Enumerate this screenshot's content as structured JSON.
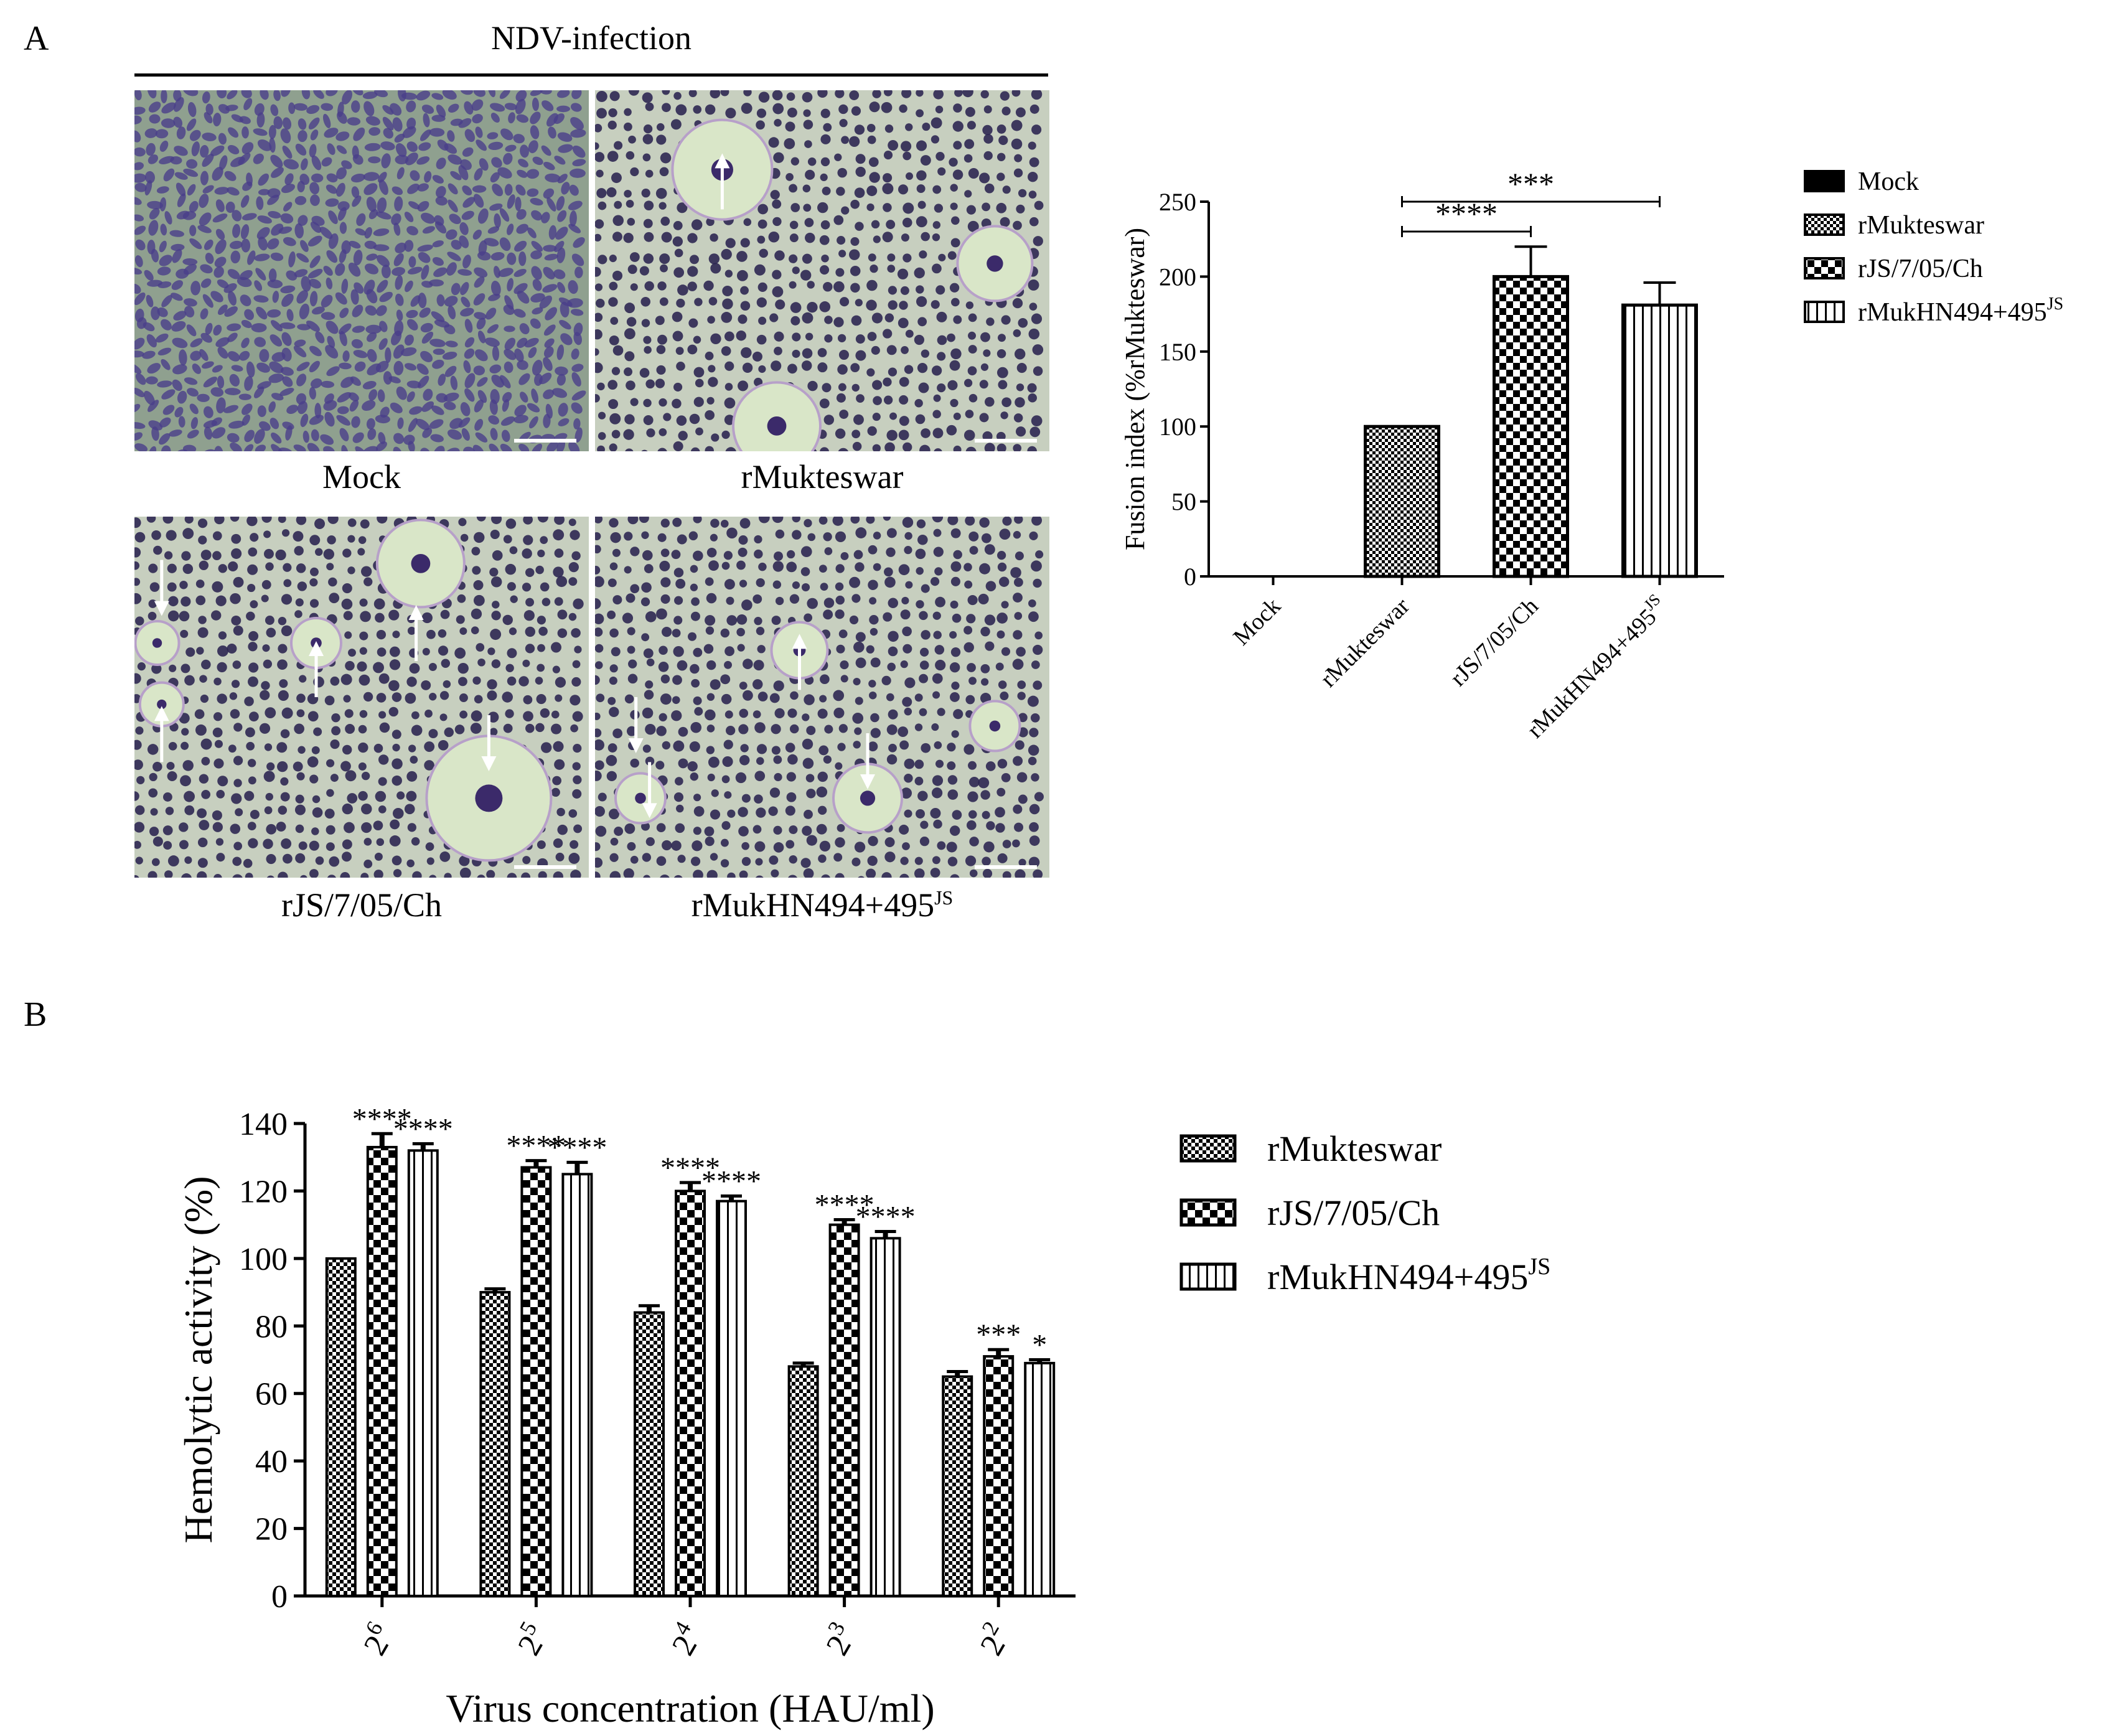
{
  "panel_a": {
    "letter": "A",
    "header": "NDV-infection",
    "images": [
      {
        "label": "Mock",
        "arrows": 0
      },
      {
        "label": "rMukteswar",
        "arrows": 1
      },
      {
        "label": "rJS/7/05/Ch",
        "arrows": 5
      },
      {
        "label": "rMukHN494+495",
        "label_sup": "JS",
        "arrows": 4
      }
    ]
  },
  "panel_b": {
    "letter": "B"
  },
  "chart_data": [
    {
      "type": "bar",
      "ylabel": "Fusion index (%rMukteswar)",
      "ylim": [
        0,
        250
      ],
      "yticks": [
        0,
        50,
        100,
        150,
        200,
        250
      ],
      "categories": [
        "Mock",
        "rMukteswar",
        "rJS/7/05/Ch",
        "rMukHN494+495JS"
      ],
      "category_labels": [
        {
          "text": "Mock",
          "sup": ""
        },
        {
          "text": "rMukteswar",
          "sup": ""
        },
        {
          "text": "rJS/7/05/Ch",
          "sup": ""
        },
        {
          "text": "rMukHN494+495",
          "sup": "JS"
        }
      ],
      "values": [
        0,
        100,
        200,
        181
      ],
      "errors": [
        0,
        0,
        20,
        15
      ],
      "patterns": [
        "solid",
        "fine-checker",
        "big-checker",
        "vstripes"
      ],
      "significance": [
        {
          "from": 1,
          "to": 2,
          "label": "****"
        },
        {
          "from": 1,
          "to": 3,
          "label": "***"
        }
      ],
      "legend": [
        {
          "text": "Mock",
          "sup": "",
          "pattern": "solid"
        },
        {
          "text": "rMukteswar",
          "sup": "",
          "pattern": "fine-checker"
        },
        {
          "text": "rJS/7/05/Ch",
          "sup": "",
          "pattern": "big-checker"
        },
        {
          "text": "rMukHN494+495",
          "sup": "JS",
          "pattern": "vstripes"
        }
      ],
      "legend_position": "right"
    },
    {
      "type": "bar",
      "xlabel": "Virus concentration (HAU/ml)",
      "ylabel": "Hemolytic activity (%)",
      "ylim": [
        0,
        140
      ],
      "yticks": [
        0,
        20,
        40,
        60,
        80,
        100,
        120,
        140
      ],
      "categories": [
        "2^6",
        "2^5",
        "2^4",
        "2^3",
        "2^2"
      ],
      "category_labels": [
        {
          "base": "2",
          "exp": "6"
        },
        {
          "base": "2",
          "exp": "5"
        },
        {
          "base": "2",
          "exp": "4"
        },
        {
          "base": "2",
          "exp": "3"
        },
        {
          "base": "2",
          "exp": "2"
        }
      ],
      "series": [
        {
          "name": "rMukteswar",
          "pattern": "fine-checker",
          "values": [
            100,
            90,
            84,
            68,
            65
          ],
          "errors": [
            0,
            1,
            2,
            1,
            1.5
          ],
          "stars": [
            "",
            "",
            "",
            "",
            ""
          ]
        },
        {
          "name": "rJS/7/05/Ch",
          "pattern": "big-checker",
          "values": [
            133,
            127,
            120,
            110,
            71
          ],
          "errors": [
            4,
            2,
            2.5,
            1.5,
            2
          ],
          "stars": [
            "****",
            "****",
            "****",
            "****",
            "***"
          ]
        },
        {
          "name": "rMukHN494+495JS",
          "pattern": "vstripes",
          "values": [
            132,
            125,
            117,
            106,
            69
          ],
          "errors": [
            2,
            3.5,
            1.5,
            2,
            1
          ],
          "stars": [
            "****",
            "****",
            "****",
            "****",
            "*"
          ]
        }
      ],
      "legend": [
        {
          "text": "rMukteswar",
          "sup": "",
          "pattern": "fine-checker"
        },
        {
          "text": "rJS/7/05/Ch",
          "sup": "",
          "pattern": "big-checker"
        },
        {
          "text": "rMukHN494+495",
          "sup": "JS",
          "pattern": "vstripes"
        }
      ],
      "legend_position": "right"
    }
  ]
}
